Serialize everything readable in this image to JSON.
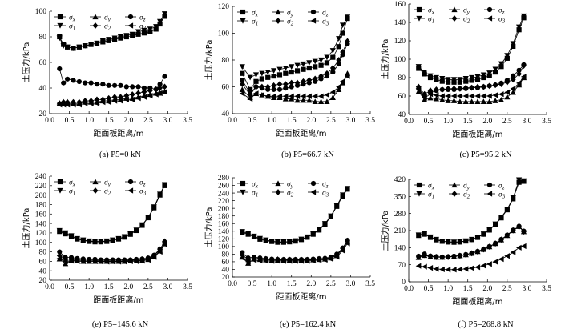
{
  "figure": {
    "ylabel": "土压力/kPa",
    "xlabel": "距面板距离/m"
  },
  "legend": [
    {
      "sym": "σ",
      "sub": "x",
      "marker": "square"
    },
    {
      "sym": "σ",
      "sub": "y",
      "marker": "triangle-up"
    },
    {
      "sym": "σ",
      "sub": "z",
      "marker": "circle"
    },
    {
      "sym": "σ",
      "sub": "1",
      "marker": "triangle-down"
    },
    {
      "sym": "σ",
      "sub": "2",
      "marker": "diamond"
    },
    {
      "sym": "σ",
      "sub": "3",
      "marker": "triangle-left"
    }
  ],
  "chart_data": [
    {
      "type": "line",
      "title": "(a) P5=0 kN",
      "xlabel": "距面板距离/m",
      "ylabel": "土压力/kPa",
      "xlim": [
        0.0,
        3.5
      ],
      "ylim": [
        20,
        100
      ],
      "xticks": [
        "0.0",
        "0.5",
        "1.0",
        "1.5",
        "2.0",
        "2.5",
        "3.0",
        "3.5"
      ],
      "yticks": [
        "20",
        "40",
        "60",
        "80",
        "100"
      ],
      "x": [
        0.25,
        0.35,
        0.45,
        0.6,
        0.75,
        0.9,
        1.05,
        1.2,
        1.35,
        1.5,
        1.65,
        1.8,
        1.95,
        2.1,
        2.25,
        2.4,
        2.55,
        2.7,
        2.8,
        2.92
      ],
      "series": [
        {
          "name": "σx",
          "values": [
            80,
            74,
            72,
            71,
            72,
            73,
            74,
            75,
            76,
            77,
            78,
            79,
            80,
            81,
            82,
            83,
            84,
            86,
            90,
            96
          ]
        },
        {
          "name": "σy",
          "values": [
            28,
            28,
            28,
            28,
            28,
            29,
            29,
            29,
            30,
            30,
            31,
            31,
            32,
            32,
            33,
            34,
            35,
            36,
            36,
            37
          ]
        },
        {
          "name": "σz",
          "values": [
            55,
            44,
            47,
            46,
            45,
            44,
            44,
            43,
            43,
            42,
            42,
            42,
            41,
            41,
            41,
            40,
            40,
            39,
            43,
            49
          ]
        },
        {
          "name": "σ1",
          "values": [
            79,
            73,
            72,
            71,
            72,
            73,
            74,
            75,
            77,
            78,
            79,
            80,
            81,
            82,
            84,
            85,
            86,
            88,
            92,
            98
          ]
        },
        {
          "name": "σ2",
          "values": [
            28,
            29,
            29,
            29,
            29,
            30,
            30,
            31,
            31,
            32,
            33,
            33,
            34,
            35,
            36,
            37,
            38,
            39,
            40,
            41
          ]
        },
        {
          "name": "σ3",
          "values": [
            27,
            27,
            27,
            27,
            27,
            28,
            28,
            28,
            29,
            29,
            30,
            30,
            31,
            31,
            32,
            33,
            34,
            35,
            36,
            37
          ]
        }
      ]
    },
    {
      "type": "line",
      "title": "(b) P5=66.7 kN",
      "xlabel": "距面板距离/m",
      "ylabel": "土压力/kPa",
      "xlim": [
        0.0,
        3.5
      ],
      "ylim": [
        40,
        120
      ],
      "xticks": [
        "0.0",
        "0.5",
        "1.0",
        "1.5",
        "2.0",
        "2.5",
        "3.0",
        "3.5"
      ],
      "yticks": [
        "40",
        "60",
        "80",
        "100",
        "120"
      ],
      "x": [
        0.25,
        0.45,
        0.6,
        0.75,
        0.9,
        1.05,
        1.2,
        1.35,
        1.5,
        1.65,
        1.8,
        1.95,
        2.1,
        2.25,
        2.4,
        2.55,
        2.7,
        2.8,
        2.92
      ],
      "series": [
        {
          "name": "σx",
          "values": [
            70,
            58,
            64,
            66,
            67,
            68,
            69,
            70,
            71,
            72,
            73,
            74,
            75,
            76,
            78,
            82,
            90,
            100,
            111
          ]
        },
        {
          "name": "σy",
          "values": [
            58,
            52,
            55,
            54,
            53,
            52,
            52,
            51,
            51,
            50,
            50,
            50,
            49,
            49,
            49,
            52,
            58,
            63,
            70
          ]
        },
        {
          "name": "σz",
          "values": [
            65,
            55,
            60,
            59,
            58,
            58,
            58,
            59,
            60,
            61,
            62,
            63,
            64,
            66,
            68,
            71,
            77,
            84,
            92
          ]
        },
        {
          "name": "σ1",
          "values": [
            75,
            67,
            69,
            70,
            71,
            72,
            73,
            74,
            75,
            76,
            77,
            78,
            79,
            80,
            82,
            87,
            96,
            106,
            112
          ]
        },
        {
          "name": "σ2",
          "values": [
            62,
            54,
            60,
            60,
            60,
            61,
            62,
            62,
            63,
            63,
            64,
            65,
            66,
            68,
            70,
            74,
            80,
            86,
            94
          ]
        },
        {
          "name": "σ3",
          "values": [
            55,
            51,
            55,
            54,
            53,
            53,
            53,
            53,
            53,
            53,
            53,
            53,
            53,
            53,
            54,
            56,
            60,
            64,
            68
          ]
        }
      ]
    },
    {
      "type": "line",
      "title": "(c) P5=95.2 kN",
      "xlabel": "距面板距离/m",
      "ylabel": "土压力/kPa",
      "xlim": [
        0.0,
        3.5
      ],
      "ylim": [
        40,
        160
      ],
      "xticks": [
        "0.0",
        "0.5",
        "1.0",
        "1.5",
        "2.0",
        "2.5",
        "3.0",
        "3.5"
      ],
      "yticks": [
        "40",
        "60",
        "80",
        "100",
        "120",
        "140",
        "160"
      ],
      "x": [
        0.25,
        0.4,
        0.55,
        0.7,
        0.85,
        1.0,
        1.15,
        1.3,
        1.45,
        1.6,
        1.75,
        1.9,
        2.05,
        2.2,
        2.35,
        2.5,
        2.65,
        2.8,
        2.92
      ],
      "series": [
        {
          "name": "σx",
          "values": [
            90,
            84,
            80,
            78,
            76,
            75,
            75,
            75,
            76,
            77,
            78,
            80,
            82,
            86,
            92,
            101,
            114,
            132,
            145
          ]
        },
        {
          "name": "σy",
          "values": [
            65,
            56,
            58,
            57,
            56,
            55,
            55,
            54,
            54,
            54,
            54,
            54,
            54,
            55,
            56,
            59,
            64,
            72,
            80
          ]
        },
        {
          "name": "σz",
          "values": [
            68,
            60,
            64,
            66,
            67,
            67,
            67,
            68,
            68,
            69,
            69,
            70,
            71,
            72,
            74,
            77,
            82,
            88,
            94
          ]
        },
        {
          "name": "σ1",
          "values": [
            92,
            86,
            82,
            80,
            79,
            78,
            78,
            78,
            79,
            80,
            81,
            83,
            85,
            89,
            95,
            104,
            117,
            135,
            147
          ]
        },
        {
          "name": "σ2",
          "values": [
            70,
            62,
            66,
            67,
            67,
            68,
            68,
            68,
            69,
            69,
            70,
            70,
            71,
            72,
            73,
            75,
            78,
            84,
            93
          ]
        },
        {
          "name": "σ3",
          "values": [
            68,
            58,
            62,
            61,
            60,
            60,
            60,
            60,
            60,
            60,
            60,
            60,
            60,
            61,
            62,
            64,
            68,
            74,
            81
          ]
        }
      ]
    },
    {
      "type": "line",
      "title": "(e) P5=145.6 kN",
      "xlabel": "距面板距离/m",
      "ylabel": "土压力/kPa",
      "xlim": [
        0.0,
        3.5
      ],
      "ylim": [
        20,
        240
      ],
      "xticks": [
        "0.0",
        "0.5",
        "1.0",
        "1.5",
        "2.0",
        "2.5",
        "3.0",
        "3.5"
      ],
      "yticks": [
        "20",
        "40",
        "60",
        "80",
        "100",
        "120",
        "140",
        "160",
        "180",
        "200",
        "220",
        "240"
      ],
      "x": [
        0.25,
        0.4,
        0.55,
        0.7,
        0.85,
        1.0,
        1.15,
        1.3,
        1.45,
        1.6,
        1.75,
        1.9,
        2.05,
        2.2,
        2.35,
        2.5,
        2.65,
        2.8,
        2.92
      ],
      "series": [
        {
          "name": "σx",
          "values": [
            123,
            118,
            112,
            107,
            104,
            102,
            101,
            101,
            102,
            104,
            107,
            111,
            117,
            125,
            136,
            152,
            173,
            200,
            220
          ]
        },
        {
          "name": "σy",
          "values": [
            65,
            55,
            62,
            61,
            60,
            60,
            60,
            60,
            60,
            60,
            60,
            60,
            61,
            61,
            62,
            64,
            70,
            82,
            97
          ]
        },
        {
          "name": "σz",
          "values": [
            80,
            68,
            68,
            66,
            65,
            64,
            64,
            63,
            63,
            63,
            63,
            63,
            63,
            64,
            65,
            67,
            73,
            86,
            100
          ]
        },
        {
          "name": "σ1",
          "values": [
            125,
            120,
            114,
            108,
            105,
            103,
            102,
            102,
            103,
            105,
            108,
            112,
            118,
            126,
            137,
            153,
            175,
            202,
            222
          ]
        },
        {
          "name": "σ2",
          "values": [
            72,
            65,
            64,
            63,
            62,
            62,
            62,
            61,
            61,
            61,
            61,
            61,
            62,
            63,
            64,
            66,
            72,
            85,
            102
          ]
        },
        {
          "name": "σ3",
          "values": [
            66,
            60,
            61,
            60,
            60,
            60,
            60,
            59,
            59,
            59,
            59,
            59,
            60,
            60,
            61,
            63,
            69,
            80,
            96
          ]
        }
      ]
    },
    {
      "type": "line",
      "title": "(e) P5=162.4 kN",
      "xlabel": "距面板距离/m",
      "ylabel": "土压力/kPa",
      "xlim": [
        0.0,
        3.5
      ],
      "ylim": [
        20,
        280
      ],
      "xticks": [
        "0.0",
        "0.5",
        "1.0",
        "1.5",
        "2.0",
        "2.5",
        "3.0",
        "3.5"
      ],
      "yticks": [
        "20",
        "40",
        "60",
        "80",
        "100",
        "120",
        "140",
        "160",
        "180",
        "200",
        "220",
        "240",
        "260",
        "280"
      ],
      "x": [
        0.25,
        0.4,
        0.55,
        0.7,
        0.85,
        1.0,
        1.15,
        1.3,
        1.45,
        1.6,
        1.75,
        1.9,
        2.05,
        2.2,
        2.35,
        2.5,
        2.65,
        2.8,
        2.92
      ],
      "series": [
        {
          "name": "σx",
          "values": [
            137,
            132,
            125,
            119,
            115,
            113,
            111,
            111,
            112,
            114,
            118,
            124,
            132,
            143,
            158,
            178,
            205,
            232,
            250
          ]
        },
        {
          "name": "σy",
          "values": [
            72,
            56,
            67,
            66,
            65,
            64,
            64,
            64,
            64,
            64,
            64,
            64,
            65,
            66,
            67,
            70,
            76,
            92,
            112
          ]
        },
        {
          "name": "σz",
          "values": [
            84,
            70,
            72,
            70,
            68,
            67,
            66,
            66,
            66,
            66,
            66,
            66,
            67,
            68,
            69,
            72,
            80,
            96,
            116
          ]
        },
        {
          "name": "σ1",
          "values": [
            139,
            134,
            127,
            121,
            117,
            114,
            112,
            112,
            113,
            115,
            119,
            125,
            133,
            145,
            160,
            180,
            207,
            235,
            252
          ]
        },
        {
          "name": "σ2",
          "values": [
            78,
            66,
            69,
            68,
            67,
            66,
            66,
            65,
            65,
            65,
            65,
            65,
            66,
            67,
            68,
            71,
            78,
            95,
            115
          ]
        },
        {
          "name": "σ3",
          "values": [
            70,
            60,
            64,
            63,
            62,
            62,
            62,
            62,
            62,
            62,
            62,
            62,
            63,
            64,
            65,
            67,
            73,
            89,
            108
          ]
        }
      ]
    },
    {
      "type": "line",
      "title": "(f) P5=268.8 kN",
      "xlabel": "距面板距离/m",
      "ylabel": "土压力/kPa",
      "xlim": [
        0.0,
        3.5
      ],
      "ylim": [
        0,
        420
      ],
      "xticks": [
        "0.0",
        "0.5",
        "1.0",
        "1.5",
        "2.0",
        "2.5",
        "3.0",
        "3.5"
      ],
      "yticks": [
        "0",
        "70",
        "140",
        "210",
        "280",
        "350",
        "420"
      ],
      "x": [
        0.25,
        0.4,
        0.55,
        0.7,
        0.85,
        1.0,
        1.15,
        1.3,
        1.45,
        1.6,
        1.75,
        1.9,
        2.05,
        2.2,
        2.35,
        2.5,
        2.65,
        2.8,
        2.92
      ],
      "series": [
        {
          "name": "σx",
          "values": [
            190,
            195,
            182,
            172,
            166,
            163,
            162,
            163,
            167,
            173,
            182,
            195,
            212,
            235,
            262,
            295,
            340,
            408,
            412
          ]
        },
        {
          "name": "σy",
          "values": [
            100,
            108,
            103,
            101,
            101,
            102,
            104,
            107,
            111,
            117,
            124,
            133,
            144,
            157,
            172,
            190,
            210,
            227,
            206
          ]
        },
        {
          "name": "σz",
          "values": [
            105,
            114,
            106,
            103,
            102,
            103,
            105,
            108,
            112,
            118,
            125,
            134,
            145,
            158,
            174,
            192,
            212,
            228,
            208
          ]
        },
        {
          "name": "σ1",
          "values": [
            192,
            198,
            184,
            174,
            167,
            164,
            163,
            164,
            168,
            174,
            183,
            196,
            214,
            237,
            265,
            298,
            344,
            418,
            414
          ]
        },
        {
          "name": "σ2",
          "values": [
            102,
            110,
            104,
            102,
            101,
            102,
            104,
            107,
            111,
            117,
            124,
            133,
            144,
            157,
            173,
            191,
            211,
            226,
            206
          ]
        },
        {
          "name": "σ3",
          "values": [
            65,
            62,
            57,
            53,
            51,
            50,
            50,
            51,
            53,
            56,
            60,
            66,
            73,
            82,
            93,
            106,
            121,
            140,
            146
          ]
        }
      ]
    }
  ]
}
